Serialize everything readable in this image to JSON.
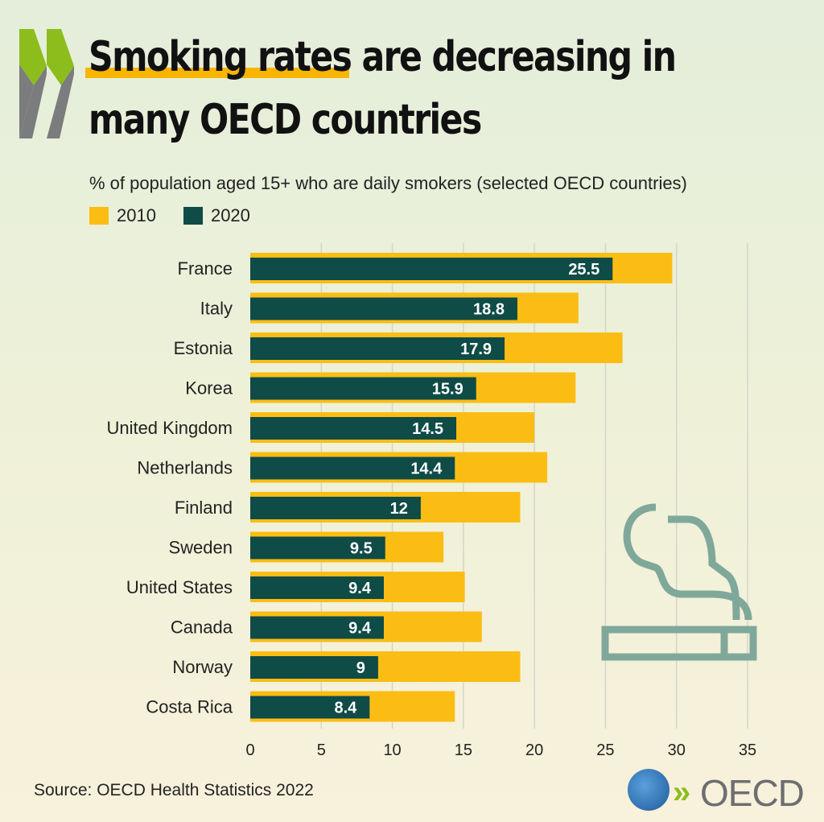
{
  "header": {
    "title": "Smoking rates are decreasing in many OECD countries"
  },
  "footer": {
    "source": "Source: OECD Health Statistics 2022",
    "logo_text": "OECD"
  },
  "colors": {
    "s2010": "#fbbd14",
    "s2020": "#0f4b47",
    "grid": "#d4d6cc",
    "icon": "#7fa89b"
  },
  "chart_data": {
    "type": "bar",
    "orientation": "horizontal",
    "title": "% of population aged 15+ who are daily smokers (selected OECD countries)",
    "categories": [
      "France",
      "Italy",
      "Estonia",
      "Korea",
      "United Kingdom",
      "Netherlands",
      "Finland",
      "Sweden",
      "United States",
      "Canada",
      "Norway",
      "Costa Rica"
    ],
    "series": [
      {
        "name": "2010",
        "values": [
          29.7,
          23.1,
          26.2,
          22.9,
          20.0,
          20.9,
          19.0,
          13.6,
          15.1,
          16.3,
          19.0,
          14.4
        ]
      },
      {
        "name": "2020",
        "values": [
          25.5,
          18.8,
          17.9,
          15.9,
          14.5,
          14.4,
          12,
          9.5,
          9.4,
          9.4,
          9,
          8.4
        ],
        "labels": [
          "25.5",
          "18.8",
          "17.9",
          "15.9",
          "14.5",
          "14.4",
          "12",
          "9.5",
          "9.4",
          "9.4",
          "9",
          "8.4"
        ]
      }
    ],
    "xlim": [
      0,
      35
    ],
    "xticks": [
      "0",
      "5",
      "10",
      "15",
      "20",
      "25",
      "30",
      "35"
    ],
    "grid": true,
    "legend": "top-left"
  }
}
